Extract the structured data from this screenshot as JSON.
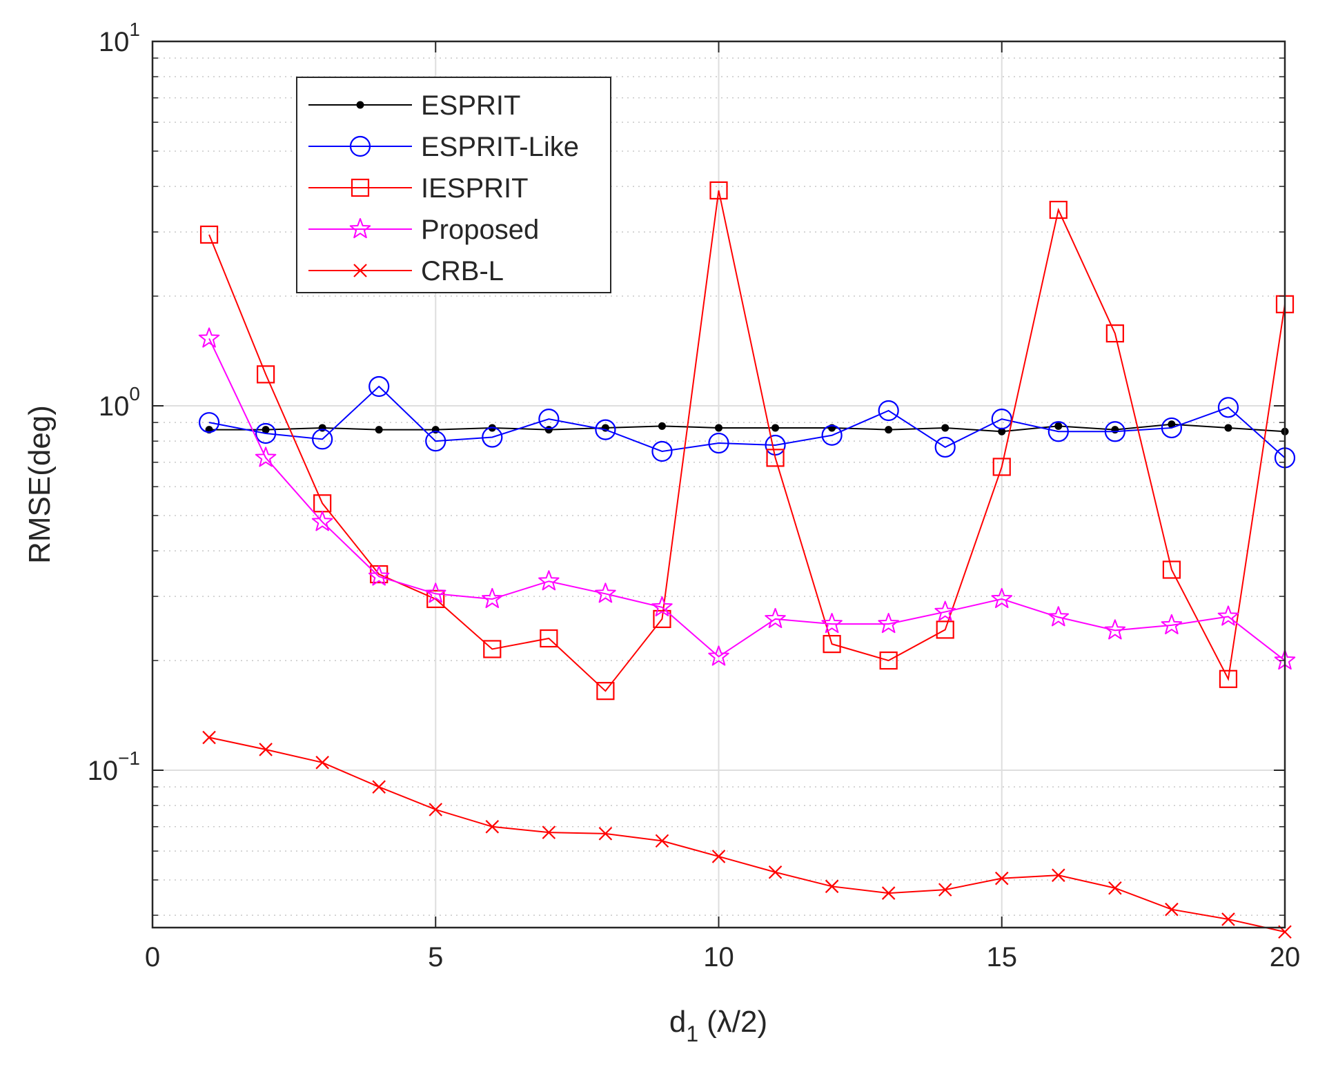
{
  "chart_data": {
    "type": "line",
    "title": "",
    "xlabel": {
      "main": "d",
      "sub": "1",
      "unit": "(λ/2)"
    },
    "ylabel": "RMSE(deg)",
    "xlim": [
      0,
      20
    ],
    "ylim": [
      0.037,
      10
    ],
    "yscale": "log",
    "grid": true,
    "legend_position": "top-left",
    "x_ticks": [
      0,
      5,
      10,
      15,
      20
    ],
    "x_tick_labels": [
      "0",
      "5",
      "10",
      "15",
      "20"
    ],
    "y_ticks": [
      {
        "value": 10,
        "base": "10",
        "exp": "1"
      },
      {
        "value": 1,
        "base": "10",
        "exp": "0"
      },
      {
        "value": 0.1,
        "base": "10",
        "exp": "−1"
      }
    ],
    "x": [
      1,
      2,
      3,
      4,
      5,
      6,
      7,
      8,
      9,
      10,
      11,
      12,
      13,
      14,
      15,
      16,
      17,
      18,
      19,
      20
    ],
    "series": [
      {
        "name": "ESPRIT",
        "color": "#000000",
        "marker": "dot",
        "values": [
          0.86,
          0.86,
          0.87,
          0.86,
          0.86,
          0.87,
          0.86,
          0.87,
          0.88,
          0.87,
          0.87,
          0.87,
          0.86,
          0.87,
          0.85,
          0.88,
          0.86,
          0.89,
          0.87,
          0.85
        ]
      },
      {
        "name": "ESPRIT-Like",
        "color": "#0000ff",
        "marker": "circle",
        "values": [
          0.9,
          0.84,
          0.81,
          1.13,
          0.8,
          0.82,
          0.92,
          0.86,
          0.75,
          0.79,
          0.78,
          0.83,
          0.97,
          0.77,
          0.92,
          0.85,
          0.85,
          0.87,
          0.99,
          0.72
        ]
      },
      {
        "name": "IESPRIT",
        "color": "#ff0000",
        "marker": "square",
        "values": [
          2.95,
          1.22,
          0.54,
          0.345,
          0.295,
          0.215,
          0.23,
          0.165,
          0.26,
          3.9,
          0.72,
          0.222,
          0.2,
          0.243,
          0.68,
          3.45,
          1.58,
          0.355,
          0.178,
          1.9
        ]
      },
      {
        "name": "Proposed",
        "color": "#ff00ff",
        "marker": "star",
        "values": [
          1.53,
          0.72,
          0.48,
          0.34,
          0.305,
          0.295,
          0.33,
          0.305,
          0.28,
          0.205,
          0.26,
          0.252,
          0.252,
          0.272,
          0.295,
          0.263,
          0.242,
          0.25,
          0.264,
          0.2
        ]
      },
      {
        "name": "CRB-L",
        "color": "#ff0000",
        "marker": "x",
        "values": [
          0.123,
          0.114,
          0.105,
          0.09,
          0.078,
          0.07,
          0.0675,
          0.067,
          0.064,
          0.058,
          0.0525,
          0.048,
          0.046,
          0.047,
          0.0505,
          0.0515,
          0.0475,
          0.0415,
          0.039,
          0.036
        ]
      }
    ]
  }
}
